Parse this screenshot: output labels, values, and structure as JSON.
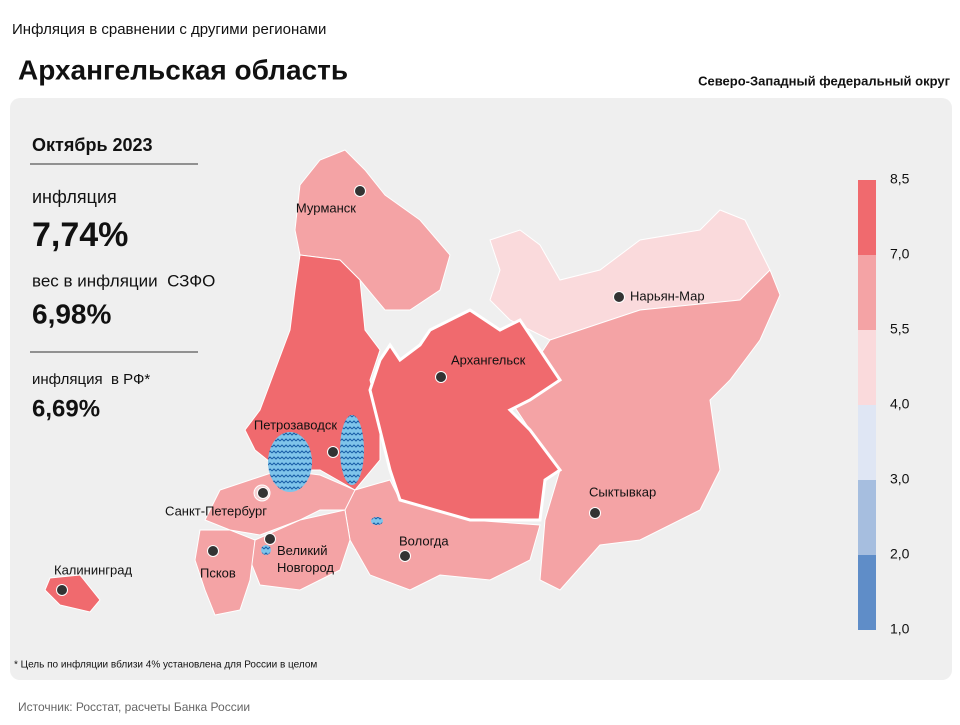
{
  "header": {
    "kicker": "Инфляция в сравнении с другими регионами",
    "title": "Архангельская область",
    "district": "Северо-Западный федеральный округ"
  },
  "panel": {
    "period": "Октябрь 2023",
    "inflation_label": "инфляция",
    "inflation_value": "7,74%",
    "weight_label": "вес в инфляции  СЗФО",
    "weight_value": "6,98%",
    "rf_label": "инфляция  в РФ*",
    "rf_value": "6,69%"
  },
  "legend": {
    "ticks": [
      {
        "value": 8.5,
        "label": "8,5"
      },
      {
        "value": 7.0,
        "label": "7,0"
      },
      {
        "value": 5.5,
        "label": "5,5"
      },
      {
        "value": 4.0,
        "label": "4,0"
      },
      {
        "value": 3.0,
        "label": "3,0"
      },
      {
        "value": 2.0,
        "label": "2,0"
      },
      {
        "value": 1.0,
        "label": "1,0"
      }
    ],
    "colors": [
      "#f06a6e",
      "#f4a3a5",
      "#fadadc",
      "#dfe6f4",
      "#a6bedf",
      "#5f8dc8"
    ]
  },
  "cities": [
    "Мурманск",
    "Нарьян-Мар",
    "Архангельск",
    "Петрозаводск",
    "Сыктывкар",
    "Санкт-Петербург",
    "Великий Новгород",
    "Вологда",
    "Псков",
    "Калининград"
  ],
  "footnote": "* Цель по инфляции вблизи 4% установлена для России в целом",
  "source": "Источник: Росстат, расчеты Банка России"
}
